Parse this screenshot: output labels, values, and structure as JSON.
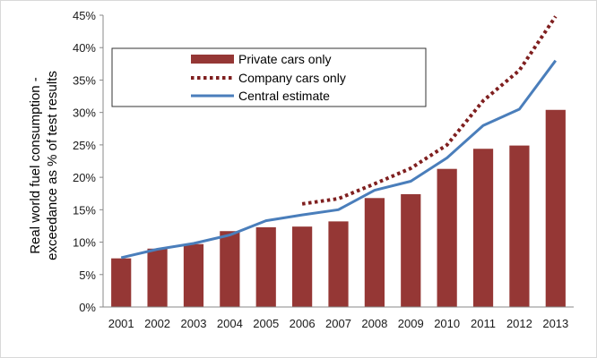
{
  "chart_data": {
    "type": "bar",
    "categories": [
      "2001",
      "2002",
      "2003",
      "2004",
      "2005",
      "2006",
      "2007",
      "2008",
      "2009",
      "2010",
      "2011",
      "2012",
      "2013"
    ],
    "series": [
      {
        "name": "Private cars only",
        "kind": "bar",
        "color": "#953735",
        "values": [
          7.5,
          9.0,
          9.7,
          11.7,
          12.3,
          12.4,
          13.2,
          16.8,
          17.4,
          21.3,
          24.4,
          24.9,
          30.4
        ]
      },
      {
        "name": "Company cars only",
        "kind": "line-dotted",
        "color": "#7f1f1f",
        "values": [
          null,
          null,
          null,
          null,
          null,
          15.9,
          16.7,
          19.0,
          21.4,
          25.0,
          31.8,
          36.5,
          44.8
        ]
      },
      {
        "name": "Central estimate",
        "kind": "line",
        "color": "#4a7ebb",
        "values": [
          7.6,
          8.9,
          9.8,
          11.1,
          13.3,
          14.2,
          15.0,
          18.0,
          19.4,
          23.0,
          28.0,
          30.5,
          38.0
        ]
      }
    ],
    "ylabel_line1": "Real world fuel consumption -",
    "ylabel_line2": "exceedance as % of test results",
    "ylim": [
      0,
      45
    ],
    "yticks": [
      0,
      5,
      10,
      15,
      20,
      25,
      30,
      35,
      40,
      45
    ],
    "ytick_labels": [
      "0%",
      "5%",
      "10%",
      "15%",
      "20%",
      "25%",
      "30%",
      "35%",
      "40%",
      "45%"
    ],
    "legend_position": "top-left inside",
    "grid": false
  }
}
